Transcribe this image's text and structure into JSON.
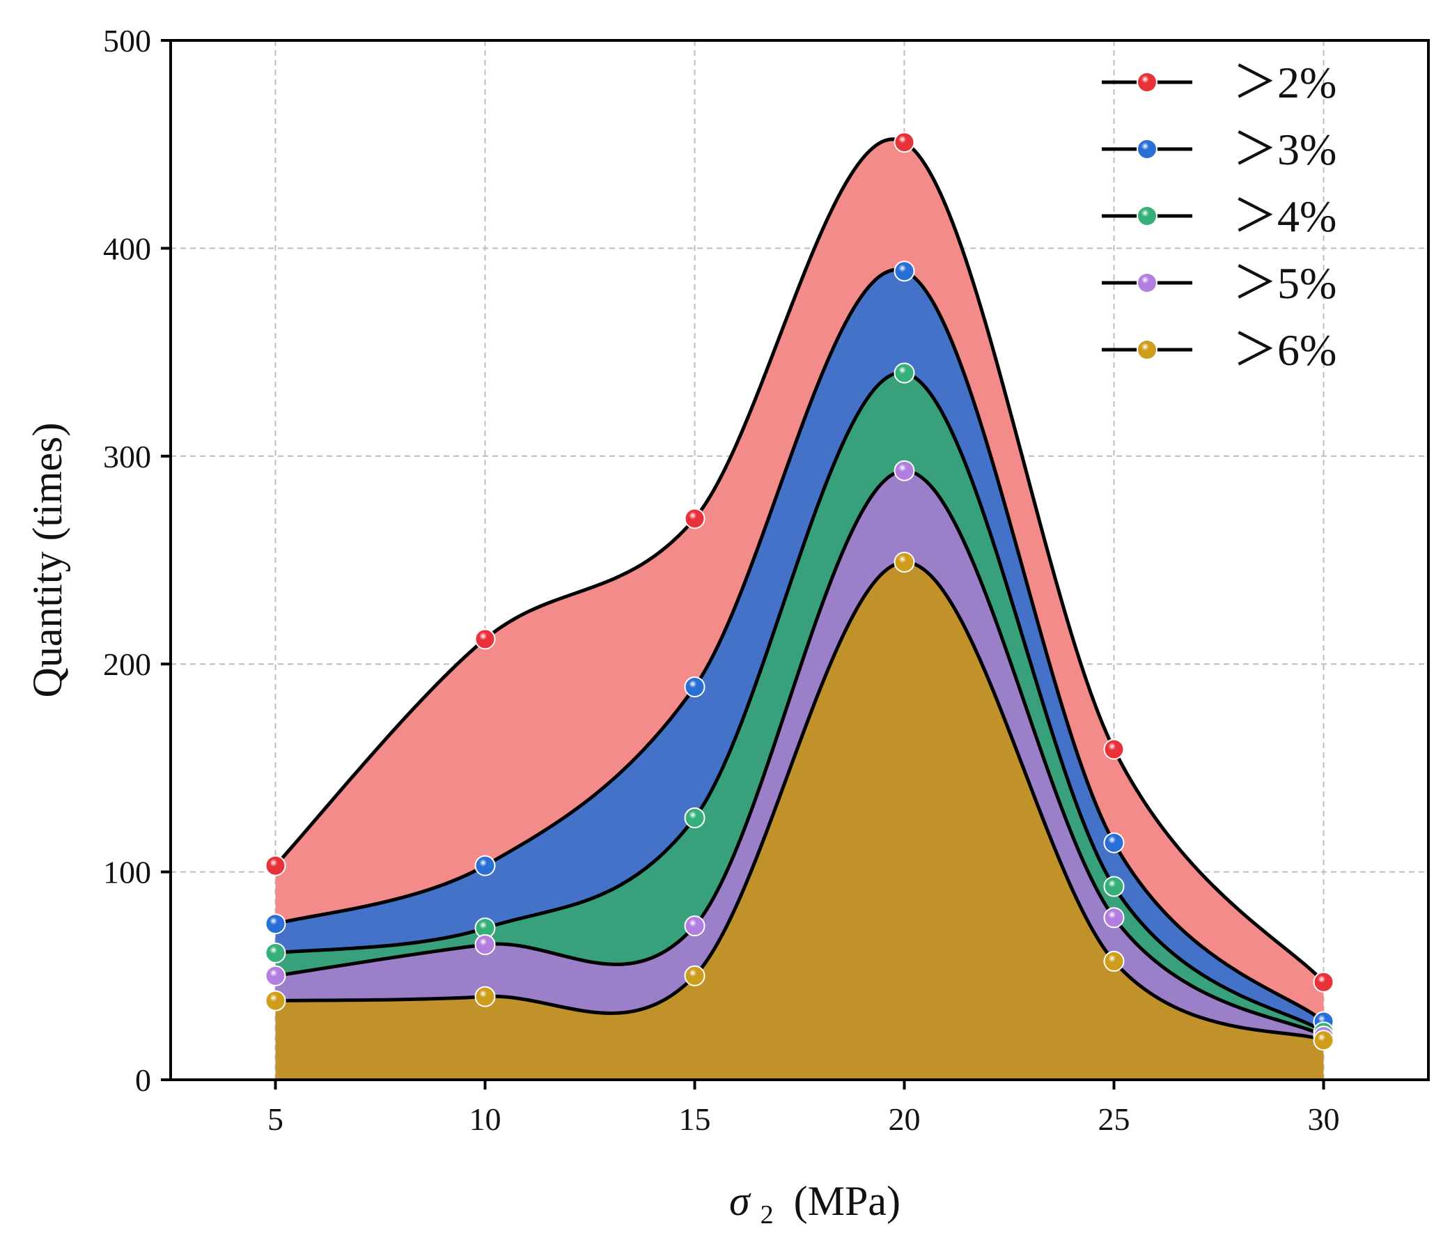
{
  "chart_data": {
    "type": "area",
    "title": "",
    "xlabel": "σ",
    "xlabel_subscript": "2",
    "xlabel_unit": "(MPa)",
    "ylabel": "Quantity (times)",
    "x": [
      5,
      10,
      15,
      20,
      25,
      30
    ],
    "xticks": [
      "5",
      "10",
      "15",
      "20",
      "25",
      "30"
    ],
    "yticks": [
      "0",
      "100",
      "200",
      "300",
      "400",
      "500"
    ],
    "xlim": [
      2.5,
      32.5
    ],
    "ylim": [
      0,
      500
    ],
    "grid": true,
    "legend_position": "top-right",
    "series": [
      {
        "name": "＞2%",
        "values": [
          103,
          212,
          270,
          451,
          159,
          47
        ],
        "fill": "#f48b8b",
        "marker": "#e8323a"
      },
      {
        "name": "＞3%",
        "values": [
          75,
          103,
          189,
          389,
          114,
          28
        ],
        "fill": "#4472c8",
        "marker": "#2a6fd6"
      },
      {
        "name": "＞4%",
        "values": [
          61,
          73,
          126,
          340,
          93,
          23
        ],
        "fill": "#38a07a",
        "marker": "#36b07a"
      },
      {
        "name": "＞5%",
        "values": [
          50,
          65,
          74,
          293,
          78,
          21
        ],
        "fill": "#9b7fc9",
        "marker": "#b27ee0"
      },
      {
        "name": "＞6%",
        "values": [
          38,
          40,
          50,
          249,
          57,
          19
        ],
        "fill": "#c2922a",
        "marker": "#cf9d1c"
      }
    ]
  }
}
